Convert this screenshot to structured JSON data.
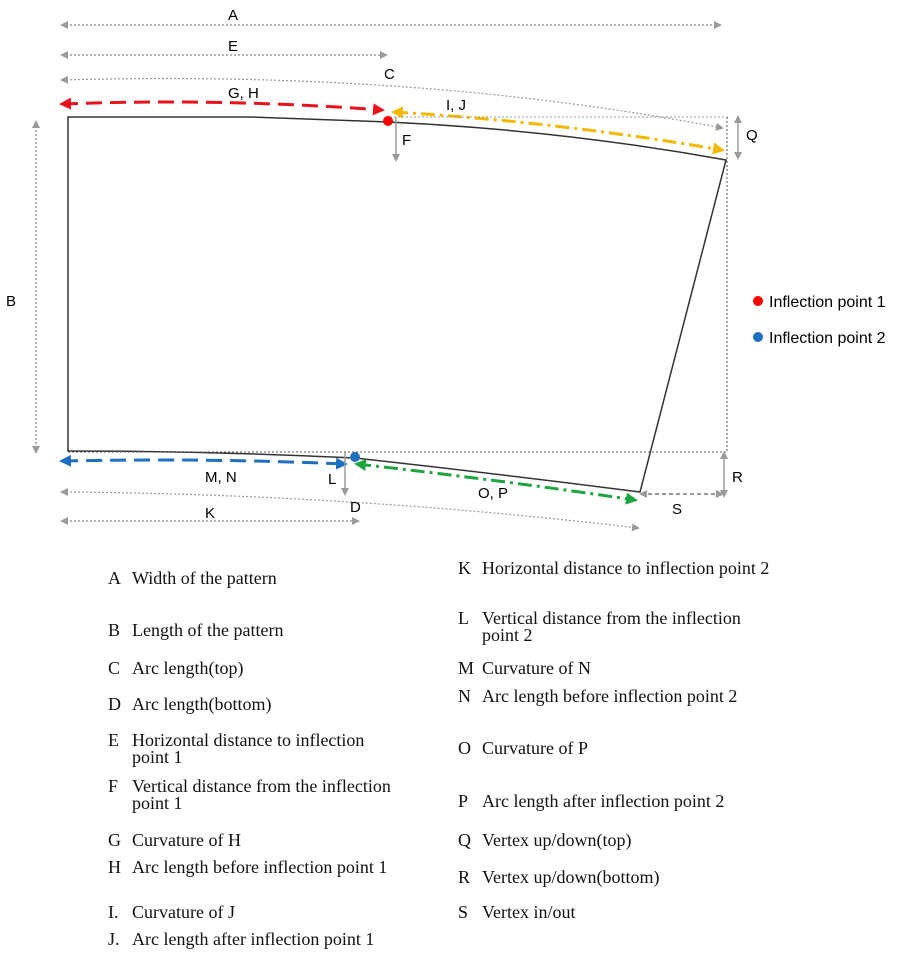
{
  "dimension_labels": {
    "A": "A",
    "E": "E",
    "C": "C",
    "GH": "G, H",
    "IJ": "I, J",
    "F": "F",
    "Q": "Q",
    "B": "B",
    "ML": "M, N",
    "L": "L",
    "D": "D",
    "OP": "O, P",
    "K": "K",
    "S": "S",
    "R": "R"
  },
  "legend": [
    {
      "label": "Inflection point 1",
      "color": "#ff0000"
    },
    {
      "label": "Inflection point 2",
      "color": "#1f6fc0"
    }
  ],
  "colors": {
    "gh_arrow": "#e8121b",
    "ij_arrow": "#f5b800",
    "mn_arrow": "#1f6fc0",
    "op_arrow": "#1ea540",
    "dim_lines": "#9a9a9a",
    "outline": "#333333"
  },
  "definitions_left": [
    {
      "key": "A",
      "text": "Width of the pattern"
    },
    {
      "key": "B",
      "text": "Length of the pattern"
    },
    {
      "key": "C",
      "text": "Arc length(top)"
    },
    {
      "key": "D",
      "text": "Arc length(bottom)"
    },
    {
      "key": "E",
      "text": "Horizontal distance to inflection point 1"
    },
    {
      "key": "F",
      "text": "Vertical distance from the inflection point 1"
    },
    {
      "key": "G",
      "text": "Curvature of H"
    },
    {
      "key": "H",
      "text": "Arc length before inflection point 1"
    },
    {
      "key": "I.",
      "text": "Curvature of J"
    },
    {
      "key": "J.",
      "text": "Arc length after inflection point 1"
    }
  ],
  "definitions_right": [
    {
      "key": "K",
      "text": "Horizontal distance to inflection point 2"
    },
    {
      "key": "L",
      "text": "Vertical distance from the inflection point 2"
    },
    {
      "key": "M",
      "text": "Curvature of N"
    },
    {
      "key": "N",
      "text": "Arc length before inflection point 2"
    },
    {
      "key": "O",
      "text": "Curvature of P"
    },
    {
      "key": "P",
      "text": "Arc length after inflection point 2"
    },
    {
      "key": "Q",
      "text": "Vertex up/down(top)"
    },
    {
      "key": "R",
      "text": "Vertex up/down(bottom)"
    },
    {
      "key": "S",
      "text": "Vertex in/out"
    }
  ]
}
